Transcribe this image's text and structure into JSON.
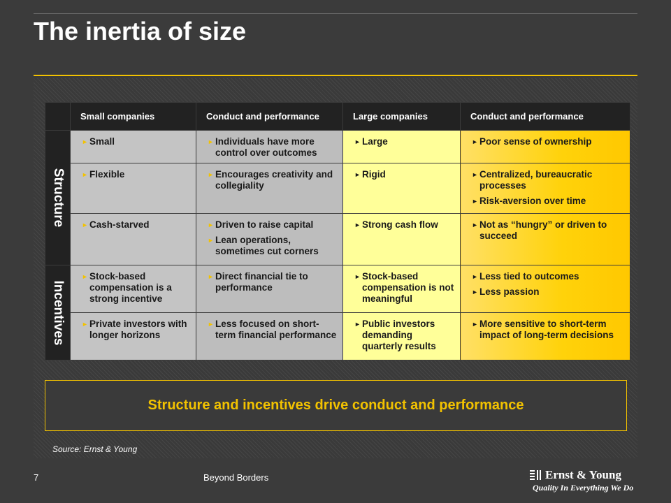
{
  "slide": {
    "title": "The inertia of size",
    "page_number": "7",
    "footer": "Beyond Borders",
    "source": "Source: Ernst & Young",
    "conclusion": "Structure and incentives drive conduct and performance"
  },
  "table": {
    "headers": [
      "Small companies",
      "Conduct and performance",
      "Large companies",
      "Conduct and performance"
    ],
    "sections": [
      {
        "label": "Structure"
      },
      {
        "label": "Incentives"
      }
    ],
    "rows": [
      {
        "cells": [
          [
            "Small"
          ],
          [
            "Individuals have more control over outcomes"
          ],
          [
            "Large"
          ],
          [
            "Poor sense of ownership"
          ]
        ]
      },
      {
        "cells": [
          [
            "Flexible"
          ],
          [
            "Encourages creativity and collegiality"
          ],
          [
            "Rigid"
          ],
          [
            "Centralized, bureaucratic processes",
            "Risk-aversion over time"
          ]
        ]
      },
      {
        "cells": [
          [
            "Cash-starved"
          ],
          [
            "Driven to raise capital",
            "Lean operations, sometimes cut corners"
          ],
          [
            "Strong cash flow"
          ],
          [
            "Not as “hungry” or driven to succeed"
          ]
        ]
      },
      {
        "cells": [
          [
            "Stock-based compensation is a strong incentive"
          ],
          [
            "Direct financial tie to performance"
          ],
          [
            "Stock-based compensation is not meaningful"
          ],
          [
            "Less tied to outcomes",
            "Less passion"
          ]
        ]
      },
      {
        "cells": [
          [
            "Private investors with longer horizons"
          ],
          [
            "Less focused on short-term financial performance"
          ],
          [
            "Public investors demanding quarterly results"
          ],
          [
            "More sensitive to short-term impact of long-term decisions"
          ]
        ]
      }
    ]
  },
  "logo": {
    "name": "Ernst & Young",
    "tagline": "Quality In Everything We Do"
  },
  "colors": {
    "background": "#3b3b3b",
    "accent": "#f2c200",
    "small_col": "#c4c4c4",
    "large_col": "#ffff99",
    "large_conduct_col": "#ffd20a"
  }
}
